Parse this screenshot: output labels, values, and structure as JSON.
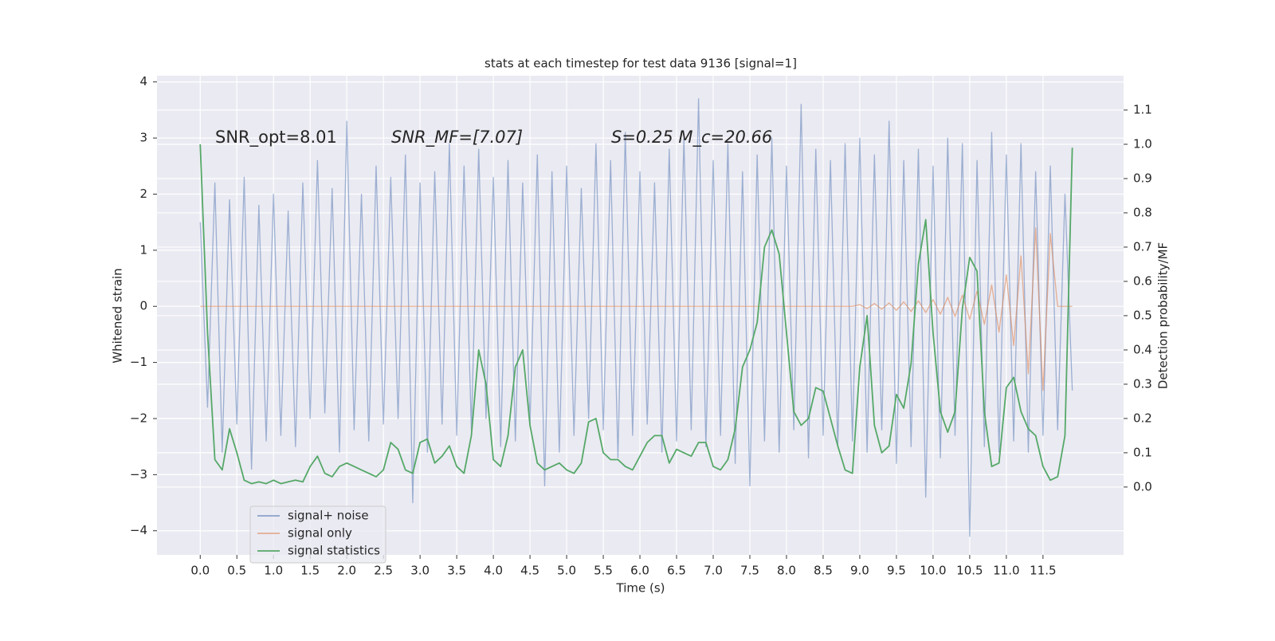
{
  "chart_data": {
    "type": "line",
    "title": "stats at each timestep for test data 9136 [signal=1]",
    "x_label": "Time (s)",
    "y_label": "Whitened strain",
    "y2_label": "Detection probability/MF",
    "annotations": [
      "SNR_opt=8.01",
      "SNR_MF=[7.07]",
      "S=0.25   M_c=20.66"
    ],
    "grid": true,
    "legend": "lower left",
    "xlim": [
      -0.59,
      12.6
    ],
    "ylim": [
      -4.43,
      4.11
    ],
    "y2lim": [
      -0.198,
      1.2
    ],
    "xticks": [
      {
        "value": 0,
        "label": "0.0"
      },
      0.5,
      {
        "value": 1,
        "label": "1.0"
      },
      1.5,
      {
        "value": 2,
        "label": "2.0"
      },
      2.5,
      {
        "value": 3,
        "label": "3.0"
      },
      3.5,
      {
        "value": 4,
        "label": "4.0"
      },
      4.5,
      {
        "value": 5,
        "label": "5.0"
      },
      5.5,
      {
        "value": 6,
        "label": "6.0"
      },
      6.5,
      {
        "value": 7,
        "label": "7.0"
      },
      7.5,
      {
        "value": 8,
        "label": "8.0"
      },
      8.5,
      {
        "value": 9,
        "label": "9.0"
      },
      9.5,
      {
        "value": 10,
        "label": "10.0"
      },
      10.5,
      {
        "value": 11,
        "label": "11.0"
      },
      11.5
    ],
    "yticks": [
      {
        "value": -4,
        "label": "−4"
      },
      {
        "value": -3,
        "label": "−3"
      },
      {
        "value": -2,
        "label": "−2"
      },
      {
        "value": -1,
        "label": "−1"
      },
      0,
      1,
      2,
      3,
      4
    ],
    "y2ticks": [
      {
        "value": 0,
        "label": "0.0"
      },
      0.1,
      0.2,
      0.3,
      0.4,
      0.5,
      0.6,
      0.7,
      0.8,
      0.9,
      {
        "value": 1,
        "label": "1.0"
      },
      1.1
    ],
    "x": [
      0.0,
      0.1,
      0.2,
      0.3,
      0.4,
      0.5,
      0.6,
      0.7,
      0.8,
      0.9,
      1.0,
      1.1,
      1.2,
      1.3,
      1.4,
      1.5,
      1.6,
      1.7,
      1.8,
      1.9,
      2.0,
      2.1,
      2.2,
      2.3,
      2.4,
      2.5,
      2.6,
      2.7,
      2.8,
      2.9,
      3.0,
      3.1,
      3.2,
      3.3,
      3.4,
      3.5,
      3.6,
      3.7,
      3.8,
      3.9,
      4.0,
      4.1,
      4.2,
      4.3,
      4.4,
      4.5,
      4.6,
      4.7,
      4.8,
      4.9,
      5.0,
      5.1,
      5.2,
      5.3,
      5.4,
      5.5,
      5.6,
      5.7,
      5.8,
      5.9,
      6.0,
      6.1,
      6.2,
      6.3,
      6.4,
      6.5,
      6.6,
      6.7,
      6.8,
      6.9,
      7.0,
      7.1,
      7.2,
      7.3,
      7.4,
      7.5,
      7.6,
      7.7,
      7.8,
      7.9,
      8.0,
      8.1,
      8.2,
      8.3,
      8.4,
      8.5,
      8.6,
      8.7,
      8.8,
      8.9,
      9.0,
      9.1,
      9.2,
      9.3,
      9.4,
      9.5,
      9.6,
      9.7,
      9.8,
      9.9,
      10.0,
      10.1,
      10.2,
      10.3,
      10.4,
      10.5,
      10.6,
      10.7,
      10.8,
      10.9,
      11.0,
      11.1,
      11.2,
      11.3,
      11.4,
      11.5,
      11.6,
      11.7,
      11.8,
      11.9
    ],
    "series": [
      {
        "name": "signal+ noise",
        "color": "#4c72b0",
        "values": [
          1.5,
          -1.8,
          2.2,
          -2.6,
          1.9,
          -2.1,
          2.3,
          -2.9,
          1.8,
          -2.4,
          2.0,
          -2.3,
          1.7,
          -2.5,
          2.2,
          -2.0,
          2.6,
          -1.9,
          2.1,
          -2.6,
          3.3,
          -2.2,
          2.0,
          -2.4,
          2.5,
          -2.1,
          2.3,
          -2.0,
          2.7,
          -3.5,
          2.2,
          -2.6,
          2.4,
          -2.1,
          2.9,
          -2.3,
          2.5,
          -2.2,
          2.8,
          -2.0,
          2.3,
          -2.5,
          2.6,
          -2.4,
          2.2,
          -2.1,
          2.7,
          -3.2,
          2.4,
          -2.6,
          2.5,
          -2.3,
          2.1,
          -2.0,
          2.9,
          -2.2,
          2.6,
          -2.7,
          3.1,
          -2.3,
          2.4,
          -2.1,
          2.2,
          -2.6,
          2.8,
          -2.4,
          3.0,
          -2.2,
          3.7,
          -2.5,
          2.6,
          -2.3,
          2.9,
          -2.8,
          2.4,
          -3.2,
          2.7,
          -2.4,
          3.0,
          -2.6,
          2.5,
          -2.2,
          3.6,
          -2.7,
          2.8,
          -2.3,
          2.6,
          -2.5,
          2.9,
          -2.4,
          3.0,
          -2.6,
          2.7,
          -2.2,
          3.3,
          -2.8,
          2.6,
          -2.5,
          2.8,
          -3.4,
          2.5,
          -2.7,
          3.0,
          -2.3,
          2.9,
          -4.1,
          2.6,
          -2.5,
          3.1,
          -2.6,
          2.7,
          -2.4,
          2.9,
          -2.6,
          2.4,
          -2.3,
          2.5,
          -2.2,
          2.0,
          -1.5
        ]
      },
      {
        "name": "signal only",
        "color": "#dd8452",
        "values": [
          0,
          0,
          0,
          0,
          0,
          0,
          0,
          0,
          0,
          0,
          0,
          0,
          0,
          0,
          0,
          0,
          0,
          0,
          0,
          0,
          0,
          0,
          0,
          0,
          0,
          0,
          0,
          0,
          0,
          0,
          0,
          0,
          0,
          0,
          0,
          0,
          0,
          0,
          0,
          0,
          0,
          0,
          0,
          0,
          0,
          0,
          0,
          0,
          0,
          0,
          0,
          0,
          0,
          0,
          0,
          0,
          0,
          0,
          0,
          0,
          0,
          0,
          0,
          0,
          0,
          0,
          0,
          0,
          0,
          0,
          0,
          0,
          0,
          0,
          0,
          0,
          0,
          0,
          0,
          0,
          0,
          0,
          0,
          0,
          0,
          0,
          0,
          0,
          0,
          0,
          0.03,
          -0.04,
          0.05,
          -0.05,
          0.06,
          -0.07,
          0.08,
          -0.09,
          0.1,
          -0.11,
          0.12,
          -0.14,
          0.16,
          -0.18,
          0.2,
          -0.23,
          0.27,
          -0.32,
          0.38,
          -0.46,
          0.56,
          -0.7,
          0.9,
          -1.2,
          1.4,
          -1.5,
          1.3,
          0,
          0,
          0
        ]
      },
      {
        "name": "signal statistics",
        "color": "#55a868",
        "axis": "y2",
        "values": [
          1.0,
          0.45,
          0.08,
          0.05,
          0.17,
          0.1,
          0.02,
          0.01,
          0.015,
          0.01,
          0.02,
          0.01,
          0.015,
          0.02,
          0.015,
          0.06,
          0.09,
          0.04,
          0.03,
          0.06,
          0.07,
          0.06,
          0.05,
          0.04,
          0.03,
          0.05,
          0.13,
          0.11,
          0.05,
          0.04,
          0.13,
          0.14,
          0.07,
          0.09,
          0.12,
          0.06,
          0.04,
          0.15,
          0.4,
          0.3,
          0.08,
          0.06,
          0.15,
          0.35,
          0.4,
          0.18,
          0.07,
          0.05,
          0.06,
          0.07,
          0.05,
          0.04,
          0.07,
          0.19,
          0.2,
          0.1,
          0.08,
          0.08,
          0.06,
          0.05,
          0.09,
          0.13,
          0.15,
          0.15,
          0.07,
          0.11,
          0.1,
          0.09,
          0.13,
          0.13,
          0.06,
          0.05,
          0.08,
          0.17,
          0.35,
          0.4,
          0.48,
          0.7,
          0.75,
          0.68,
          0.45,
          0.22,
          0.18,
          0.2,
          0.29,
          0.28,
          0.2,
          0.12,
          0.05,
          0.04,
          0.35,
          0.5,
          0.18,
          0.1,
          0.12,
          0.27,
          0.23,
          0.36,
          0.65,
          0.78,
          0.45,
          0.22,
          0.16,
          0.22,
          0.52,
          0.67,
          0.63,
          0.22,
          0.06,
          0.07,
          0.29,
          0.32,
          0.22,
          0.17,
          0.15,
          0.06,
          0.02,
          0.03,
          0.15,
          0.99
        ]
      }
    ]
  }
}
